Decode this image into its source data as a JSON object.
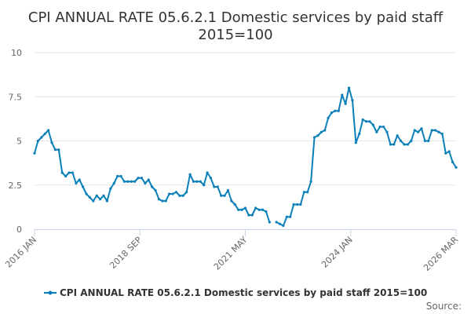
{
  "colors": {
    "series": "#0a7fb8",
    "grid": "#e6e6e6",
    "axis": "#ccd6eb"
  },
  "chart_data": {
    "type": "line",
    "title_line1": "CPI ANNUAL RATE 05.6.2.1 Domestic services by paid staff",
    "title_line2": "2015=100",
    "xlabel": "",
    "ylabel": "",
    "ylim": [
      0,
      10
    ],
    "y_ticks": [
      "0",
      "2.5",
      "5",
      "7.5",
      "10"
    ],
    "x_tick_labels": [
      "2016 JAN",
      "2018 SEP",
      "2021 MAY",
      "2024 JAN",
      "2026 MAR"
    ],
    "grid": true,
    "legend_position": "bottom",
    "source_label": "Source:",
    "series": [
      {
        "name": "CPI ANNUAL RATE 05.6.2.1 Domestic services by paid staff 2015=100",
        "values": [
          4.3,
          5.0,
          5.2,
          5.4,
          5.6,
          4.9,
          4.5,
          4.5,
          3.2,
          3.0,
          3.2,
          3.2,
          2.6,
          2.8,
          2.4,
          2.0,
          1.8,
          1.6,
          1.9,
          1.7,
          1.9,
          1.6,
          2.3,
          2.6,
          3.0,
          3.0,
          2.7,
          2.7,
          2.7,
          2.7,
          2.9,
          2.9,
          2.6,
          2.8,
          2.4,
          2.2,
          1.7,
          1.6,
          1.6,
          2.0,
          2.0,
          2.1,
          1.9,
          1.9,
          2.1,
          3.1,
          2.7,
          2.7,
          2.7,
          2.5,
          3.2,
          2.9,
          2.4,
          2.4,
          1.9,
          1.9,
          2.2,
          1.6,
          1.4,
          1.1,
          1.1,
          1.2,
          0.8,
          0.8,
          1.2,
          1.1,
          1.1,
          1.0,
          0.4,
          null,
          0.4,
          0.3,
          0.2,
          0.7,
          0.7,
          1.4,
          1.4,
          1.4,
          2.1,
          2.1,
          2.7,
          5.2,
          5.3,
          5.5,
          5.6,
          6.3,
          6.6,
          6.7,
          6.7,
          7.6,
          7.1,
          8.0,
          7.3,
          4.9,
          5.4,
          6.2,
          6.1,
          6.1,
          5.9,
          5.5,
          5.8,
          5.8,
          5.5,
          4.8,
          4.8,
          5.3,
          5.0,
          4.8,
          4.8,
          5.0,
          5.6,
          5.5,
          5.7,
          5.0,
          5.0,
          5.6,
          5.6,
          5.5,
          5.4,
          4.3,
          4.4,
          3.8,
          3.5
        ]
      }
    ]
  }
}
